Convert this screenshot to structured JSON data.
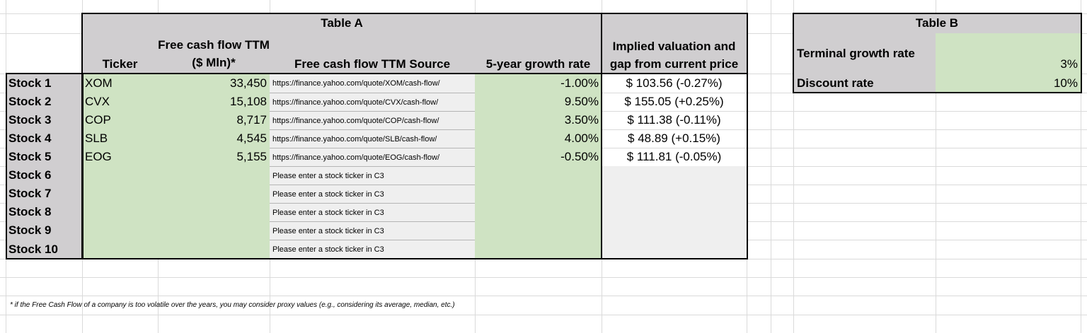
{
  "table_a": {
    "title": "Table A",
    "headers": {
      "ticker": "Ticker",
      "fcf": "Free cash flow TTM ($ Mln)*",
      "source": "Free cash flow TTM Source",
      "growth": "5-year growth rate",
      "valuation": "Implied valuation and gap from current price"
    },
    "rows": [
      {
        "label": "Stock 1",
        "ticker": "XOM",
        "fcf": "33,450",
        "source": "https://finance.yahoo.com/quote/XOM/cash-flow/",
        "growth": "-1.00%",
        "valuation": "$ 103.56 (-0.27%)"
      },
      {
        "label": "Stock 2",
        "ticker": "CVX",
        "fcf": "15,108",
        "source": "https://finance.yahoo.com/quote/CVX/cash-flow/",
        "growth": "9.50%",
        "valuation": "$ 155.05 (+0.25%)"
      },
      {
        "label": "Stock 3",
        "ticker": "COP",
        "fcf": "8,717",
        "source": "https://finance.yahoo.com/quote/COP/cash-flow/",
        "growth": "3.50%",
        "valuation": "$ 111.38 (-0.11%)"
      },
      {
        "label": "Stock 4",
        "ticker": "SLB",
        "fcf": "4,545",
        "source": "https://finance.yahoo.com/quote/SLB/cash-flow/",
        "growth": "4.00%",
        "valuation": "$ 48.89 (+0.15%)"
      },
      {
        "label": "Stock 5",
        "ticker": "EOG",
        "fcf": "5,155",
        "source": "https://finance.yahoo.com/quote/EOG/cash-flow/",
        "growth": "-0.50%",
        "valuation": "$ 111.81 (-0.05%)"
      },
      {
        "label": "Stock 6",
        "ticker": "",
        "fcf": "",
        "source": "Please enter a stock ticker in C3",
        "growth": "",
        "valuation": ""
      },
      {
        "label": "Stock 7",
        "ticker": "",
        "fcf": "",
        "source": "Please enter a stock ticker in C3",
        "growth": "",
        "valuation": ""
      },
      {
        "label": "Stock 8",
        "ticker": "",
        "fcf": "",
        "source": "Please enter a stock ticker in C3",
        "growth": "",
        "valuation": ""
      },
      {
        "label": "Stock 9",
        "ticker": "",
        "fcf": "",
        "source": "Please enter a stock ticker in C3",
        "growth": "",
        "valuation": ""
      },
      {
        "label": "Stock 10",
        "ticker": "",
        "fcf": "",
        "source": "Please enter a stock ticker in C3",
        "growth": "",
        "valuation": ""
      }
    ]
  },
  "table_b": {
    "title": "Table B",
    "rows": [
      {
        "label": "Terminal growth rate",
        "value": "3%"
      },
      {
        "label": "Discount rate",
        "value": "10%"
      }
    ]
  },
  "footnote": "* if the Free Cash Flow of a company is too volatile over the years, you may consider proxy values (e.g., considering its average, median, etc.)",
  "colors": {
    "header_gray": "#d0ced0",
    "input_green": "#cfe3c3",
    "empty_gray": "#efefef",
    "gridline": "#dadada"
  }
}
